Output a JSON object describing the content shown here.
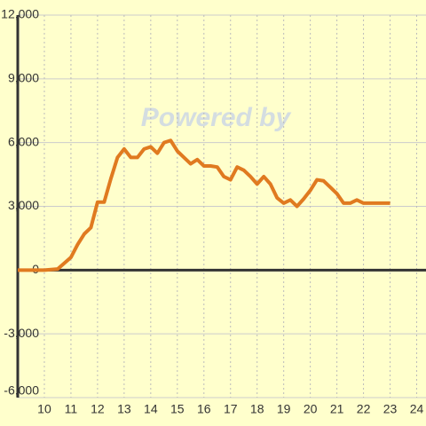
{
  "chart_data": {
    "type": "line",
    "watermark": "Powered by",
    "x": [
      9,
      10,
      10.5,
      11,
      11.25,
      11.5,
      11.75,
      12,
      12.25,
      12.5,
      12.75,
      13,
      13.25,
      13.5,
      13.75,
      14,
      14.25,
      14.5,
      14.75,
      15,
      15.25,
      15.5,
      15.75,
      16,
      16.25,
      16.5,
      16.75,
      17,
      17.25,
      17.5,
      17.75,
      18,
      18.25,
      18.5,
      18.75,
      19,
      19.25,
      19.5,
      19.75,
      20,
      20.25,
      20.5,
      20.75,
      21,
      21.25,
      21.5,
      21.75,
      22,
      22.5,
      23
    ],
    "series": [
      {
        "color": "#e07a20",
        "values": [
          0,
          0,
          50,
          600,
          1200,
          1700,
          2000,
          3200,
          3200,
          4300,
          5300,
          5700,
          5300,
          5300,
          5700,
          5800,
          5500,
          6000,
          6100,
          5600,
          5300,
          5000,
          5200,
          4900,
          4900,
          4850,
          4400,
          4250,
          4850,
          4700,
          4400,
          4050,
          4400,
          4050,
          3400,
          3150,
          3300,
          3000,
          3350,
          3750,
          4250,
          4200,
          3900,
          3600,
          3150,
          3150,
          3300,
          3150,
          3150,
          3150
        ]
      }
    ],
    "xlim": [
      9,
      24.35
    ],
    "xticks": [
      10,
      11,
      12,
      13,
      14,
      15,
      16,
      17,
      18,
      19,
      20,
      21,
      22,
      23,
      24
    ],
    "ylim": [
      -6000,
      12000
    ],
    "yticks": [
      {
        "value": -6000,
        "label": "-6,000"
      },
      {
        "value": -3000,
        "label": "-3,000"
      },
      0,
      {
        "value": 3000,
        "label": "3,000"
      },
      {
        "value": 6000,
        "label": "6,000"
      },
      {
        "value": 9000,
        "label": "9,000"
      },
      {
        "value": 12000,
        "label": "12,000"
      }
    ],
    "grid": true
  }
}
